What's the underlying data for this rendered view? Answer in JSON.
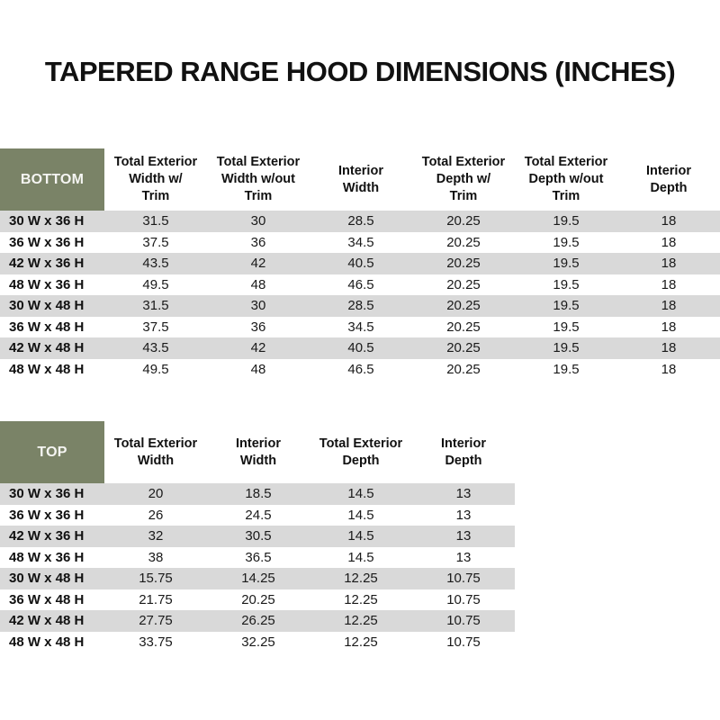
{
  "title": "TAPERED RANGE HOOD DIMENSIONS (INCHES)",
  "colors": {
    "header_green": "#7a8367",
    "band_gray": "#d9d9d9",
    "header_text": "#f5f5f2",
    "body_text": "#1a1a1a"
  },
  "chart_data": [
    {
      "type": "table",
      "name": "BOTTOM",
      "columns": [
        "Total Exterior\nWidth w/\nTrim",
        "Total Exterior\nWidth w/out\nTrim",
        "Interior\nWidth",
        "Total Exterior\nDepth w/\nTrim",
        "Total Exterior\nDepth w/out\nTrim",
        "Interior\nDepth"
      ],
      "rows": [
        {
          "label": "30 W x 36 H",
          "values": [
            "31.5",
            "30",
            "28.5",
            "20.25",
            "19.5",
            "18"
          ]
        },
        {
          "label": "36 W x 36 H",
          "values": [
            "37.5",
            "36",
            "34.5",
            "20.25",
            "19.5",
            "18"
          ]
        },
        {
          "label": "42 W x 36 H",
          "values": [
            "43.5",
            "42",
            "40.5",
            "20.25",
            "19.5",
            "18"
          ]
        },
        {
          "label": "48 W x 36 H",
          "values": [
            "49.5",
            "48",
            "46.5",
            "20.25",
            "19.5",
            "18"
          ]
        },
        {
          "label": "30 W x 48 H",
          "values": [
            "31.5",
            "30",
            "28.5",
            "20.25",
            "19.5",
            "18"
          ]
        },
        {
          "label": "36 W x 48 H",
          "values": [
            "37.5",
            "36",
            "34.5",
            "20.25",
            "19.5",
            "18"
          ]
        },
        {
          "label": "42 W x 48 H",
          "values": [
            "43.5",
            "42",
            "40.5",
            "20.25",
            "19.5",
            "18"
          ]
        },
        {
          "label": "48 W x 48 H",
          "values": [
            "49.5",
            "48",
            "46.5",
            "20.25",
            "19.5",
            "18"
          ]
        }
      ]
    },
    {
      "type": "table",
      "name": "TOP",
      "columns": [
        "Total Exterior\nWidth",
        "Interior\nWidth",
        "Total Exterior\nDepth",
        "Interior\nDepth"
      ],
      "rows": [
        {
          "label": "30 W x 36 H",
          "values": [
            "20",
            "18.5",
            "14.5",
            "13"
          ]
        },
        {
          "label": "36 W x 36 H",
          "values": [
            "26",
            "24.5",
            "14.5",
            "13"
          ]
        },
        {
          "label": "42 W x 36 H",
          "values": [
            "32",
            "30.5",
            "14.5",
            "13"
          ]
        },
        {
          "label": "48 W x 36 H",
          "values": [
            "38",
            "36.5",
            "14.5",
            "13"
          ]
        },
        {
          "label": "30 W x 48 H",
          "values": [
            "15.75",
            "14.25",
            "12.25",
            "10.75"
          ]
        },
        {
          "label": "36 W x 48 H",
          "values": [
            "21.75",
            "20.25",
            "12.25",
            "10.75"
          ]
        },
        {
          "label": "42 W x 48 H",
          "values": [
            "27.75",
            "26.25",
            "12.25",
            "10.75"
          ]
        },
        {
          "label": "48 W x 48 H",
          "values": [
            "33.75",
            "32.25",
            "12.25",
            "10.75"
          ]
        }
      ]
    }
  ]
}
